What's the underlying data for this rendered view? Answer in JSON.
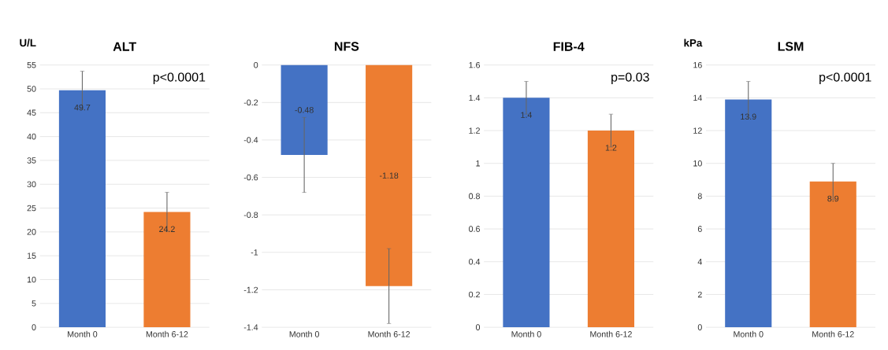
{
  "chart_data": [
    {
      "type": "bar",
      "title": "ALT",
      "ylabel": "U/L",
      "categories": [
        "Month 0",
        "Month 6-12"
      ],
      "values": [
        49.7,
        24.2
      ],
      "errors": [
        4,
        4.1
      ],
      "colors": [
        "#4472c4",
        "#ed7d31"
      ],
      "ylim": [
        0,
        55
      ],
      "yticks": [
        0,
        5,
        10,
        15,
        20,
        25,
        30,
        35,
        40,
        45,
        50,
        55
      ],
      "grid": "y",
      "data_labels": true,
      "annotations": [
        "p<0.0001"
      ]
    },
    {
      "type": "bar",
      "title": "NFS",
      "categories": [
        "Month 0",
        "Month 6-12"
      ],
      "values": [
        -0.48,
        -1.18
      ],
      "errors": [
        0.2,
        0.2
      ],
      "colors": [
        "#4472c4",
        "#ed7d31"
      ],
      "ylim": [
        -1.4,
        0
      ],
      "yticks": [
        -1.4,
        -1.2,
        -1,
        -0.8,
        -0.6,
        -0.4,
        -0.2,
        0
      ],
      "grid": "y",
      "data_labels": true
    },
    {
      "type": "bar",
      "title": "FIB-4",
      "categories": [
        "Month 0",
        "Month 6-12"
      ],
      "values": [
        1.4,
        1.2
      ],
      "errors": [
        0.1,
        0.1
      ],
      "colors": [
        "#4472c4",
        "#ed7d31"
      ],
      "ylim": [
        0,
        1.6
      ],
      "yticks": [
        0,
        0.2,
        0.4,
        0.6,
        0.8,
        1,
        1.2,
        1.4,
        1.6
      ],
      "grid": "y",
      "data_labels": true,
      "annotations": [
        "p=0.03"
      ]
    },
    {
      "type": "bar",
      "title": "LSM",
      "ylabel": "kPa",
      "categories": [
        "Month 0",
        "Month 6-12"
      ],
      "values": [
        13.9,
        8.9
      ],
      "errors": [
        1.1,
        1.1
      ],
      "colors": [
        "#4472c4",
        "#ed7d31"
      ],
      "ylim": [
        0,
        16
      ],
      "yticks": [
        0,
        2,
        4,
        6,
        8,
        10,
        12,
        14,
        16
      ],
      "grid": "y",
      "data_labels": true,
      "annotations": [
        "p<0.0001"
      ]
    }
  ]
}
